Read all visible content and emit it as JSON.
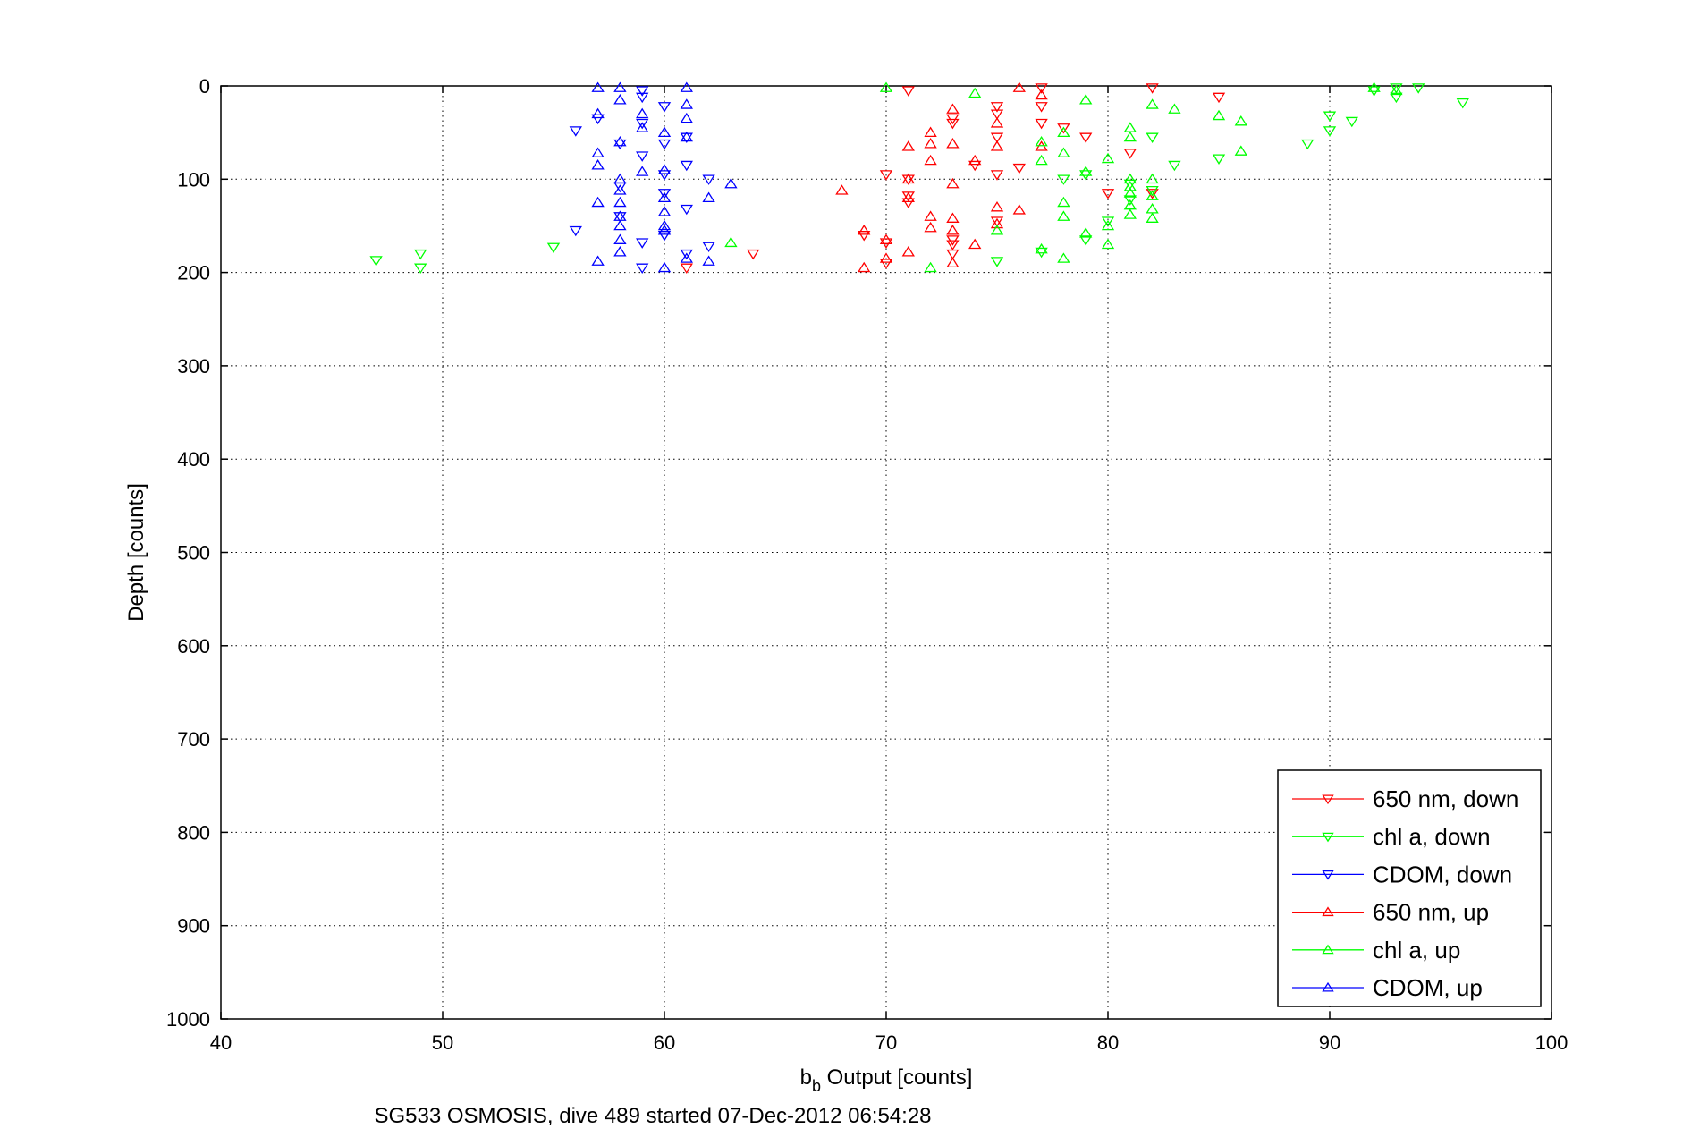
{
  "chart_data": {
    "type": "scatter",
    "title": "",
    "xlabel_main": "b",
    "xlabel_sub": "b",
    "xlabel_rest": " Output [counts]",
    "ylabel": "Depth [counts]",
    "xlim": [
      40,
      100
    ],
    "ylim": [
      0,
      1000
    ],
    "y_reversed": true,
    "grid": true,
    "legend_position": "bottom-right",
    "caption": "SG533 OSMOSIS, dive 489 started 07-Dec-2012 06:54:28",
    "xticks": [
      "40",
      "50",
      "60",
      "70",
      "80",
      "90",
      "100"
    ],
    "yticks": [
      "0",
      "100",
      "200",
      "300",
      "400",
      "500",
      "600",
      "700",
      "800",
      "900",
      "1000"
    ],
    "series": [
      {
        "name": "650 nm, down",
        "color": "#ff0000",
        "marker": "triangle-down",
        "points": [
          [
            71,
            5
          ],
          [
            77,
            2
          ],
          [
            82,
            2
          ],
          [
            85,
            12
          ],
          [
            75,
            22
          ],
          [
            77,
            22
          ],
          [
            70,
            95
          ],
          [
            71,
            100
          ],
          [
            74,
            85
          ],
          [
            75,
            95
          ],
          [
            76,
            88
          ],
          [
            79,
            55
          ],
          [
            81,
            72
          ],
          [
            80,
            115
          ],
          [
            75,
            30
          ],
          [
            73,
            40
          ],
          [
            78,
            45
          ],
          [
            69,
            160
          ],
          [
            71,
            125
          ],
          [
            73,
            165
          ],
          [
            73,
            180
          ],
          [
            70,
            190
          ],
          [
            73,
            35
          ],
          [
            75,
            55
          ],
          [
            77,
            40
          ],
          [
            82,
            115
          ],
          [
            64,
            180
          ],
          [
            61,
            195
          ],
          [
            71,
            118
          ],
          [
            75,
            145
          ],
          [
            70,
            168
          ],
          [
            73,
            170
          ]
        ]
      },
      {
        "name": "chl a, down",
        "color": "#00ff00",
        "marker": "triangle-down",
        "points": [
          [
            47,
            187
          ],
          [
            49,
            180
          ],
          [
            49,
            195
          ],
          [
            55,
            173
          ],
          [
            92,
            5
          ],
          [
            93,
            2
          ],
          [
            94,
            2
          ],
          [
            93,
            12
          ],
          [
            96,
            18
          ],
          [
            90,
            32
          ],
          [
            91,
            38
          ],
          [
            90,
            48
          ],
          [
            89,
            62
          ],
          [
            85,
            78
          ],
          [
            83,
            85
          ],
          [
            82,
            55
          ],
          [
            79,
            95
          ],
          [
            78,
            100
          ],
          [
            81,
            105
          ],
          [
            82,
            112
          ],
          [
            81,
            122
          ],
          [
            80,
            145
          ],
          [
            79,
            165
          ],
          [
            77,
            178
          ],
          [
            75,
            188
          ]
        ]
      },
      {
        "name": "CDOM, down",
        "color": "#0000ff",
        "marker": "triangle-down",
        "points": [
          [
            59,
            5
          ],
          [
            59,
            12
          ],
          [
            60,
            22
          ],
          [
            56,
            48
          ],
          [
            57,
            35
          ],
          [
            59,
            40
          ],
          [
            58,
            62
          ],
          [
            60,
            62
          ],
          [
            59,
            75
          ],
          [
            61,
            55
          ],
          [
            60,
            95
          ],
          [
            61,
            85
          ],
          [
            58,
            108
          ],
          [
            62,
            100
          ],
          [
            60,
            115
          ],
          [
            61,
            132
          ],
          [
            56,
            155
          ],
          [
            58,
            140
          ],
          [
            60,
            160
          ],
          [
            59,
            168
          ],
          [
            62,
            172
          ],
          [
            61,
            180
          ],
          [
            59,
            195
          ]
        ]
      },
      {
        "name": "650 nm, up",
        "color": "#ff0000",
        "marker": "triangle-up",
        "points": [
          [
            76,
            2
          ],
          [
            77,
            10
          ],
          [
            73,
            25
          ],
          [
            75,
            40
          ],
          [
            72,
            50
          ],
          [
            71,
            65
          ],
          [
            72,
            62
          ],
          [
            73,
            62
          ],
          [
            74,
            80
          ],
          [
            75,
            65
          ],
          [
            77,
            65
          ],
          [
            72,
            80
          ],
          [
            71,
            100
          ],
          [
            73,
            105
          ],
          [
            71,
            120
          ],
          [
            68,
            112
          ],
          [
            72,
            140
          ],
          [
            73,
            142
          ],
          [
            74,
            170
          ],
          [
            75,
            130
          ],
          [
            76,
            133
          ],
          [
            69,
            155
          ],
          [
            72,
            152
          ],
          [
            70,
            165
          ],
          [
            73,
            155
          ],
          [
            71,
            178
          ],
          [
            73,
            190
          ],
          [
            69,
            195
          ],
          [
            70,
            185
          ],
          [
            75,
            148
          ]
        ]
      },
      {
        "name": "chl a, up",
        "color": "#00ff00",
        "marker": "triangle-up",
        "points": [
          [
            70,
            2
          ],
          [
            74,
            8
          ],
          [
            79,
            15
          ],
          [
            82,
            20
          ],
          [
            83,
            25
          ],
          [
            85,
            32
          ],
          [
            86,
            38
          ],
          [
            92,
            2
          ],
          [
            93,
            5
          ],
          [
            81,
            45
          ],
          [
            77,
            60
          ],
          [
            78,
            50
          ],
          [
            81,
            55
          ],
          [
            86,
            70
          ],
          [
            77,
            80
          ],
          [
            78,
            72
          ],
          [
            79,
            92
          ],
          [
            80,
            78
          ],
          [
            81,
            100
          ],
          [
            82,
            100
          ],
          [
            81,
            115
          ],
          [
            82,
            118
          ],
          [
            81,
            128
          ],
          [
            82,
            132
          ],
          [
            81,
            138
          ],
          [
            82,
            142
          ],
          [
            78,
            125
          ],
          [
            78,
            140
          ],
          [
            80,
            150
          ],
          [
            79,
            158
          ],
          [
            75,
            155
          ],
          [
            72,
            195
          ],
          [
            63,
            168
          ],
          [
            77,
            175
          ],
          [
            78,
            185
          ],
          [
            80,
            170
          ],
          [
            81,
            108
          ]
        ]
      },
      {
        "name": "CDOM, up",
        "color": "#0000ff",
        "marker": "triangle-up",
        "points": [
          [
            57,
            2
          ],
          [
            58,
            2
          ],
          [
            61,
            2
          ],
          [
            58,
            15
          ],
          [
            61,
            20
          ],
          [
            57,
            30
          ],
          [
            61,
            35
          ],
          [
            59,
            30
          ],
          [
            59,
            45
          ],
          [
            57,
            72
          ],
          [
            57,
            85
          ],
          [
            58,
            60
          ],
          [
            60,
            50
          ],
          [
            61,
            55
          ],
          [
            59,
            92
          ],
          [
            60,
            90
          ],
          [
            58,
            100
          ],
          [
            58,
            112
          ],
          [
            58,
            125
          ],
          [
            57,
            125
          ],
          [
            60,
            120
          ],
          [
            62,
            120
          ],
          [
            60,
            135
          ],
          [
            60,
            150
          ],
          [
            63,
            105
          ],
          [
            58,
            140
          ],
          [
            58,
            150
          ],
          [
            60,
            155
          ],
          [
            58,
            165
          ],
          [
            58,
            178
          ],
          [
            57,
            188
          ],
          [
            62,
            188
          ],
          [
            60,
            195
          ],
          [
            61,
            185
          ]
        ]
      }
    ]
  }
}
